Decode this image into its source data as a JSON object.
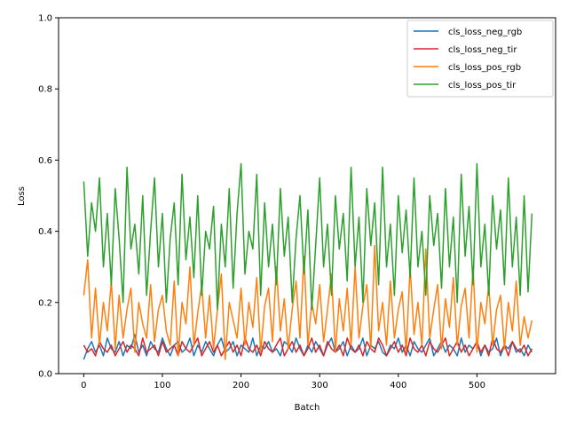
{
  "chart_data": {
    "type": "line",
    "title": "",
    "xlabel": "Batch",
    "ylabel": "Loss",
    "xlim": [
      -32,
      600
    ],
    "ylim": [
      0.0,
      1.0
    ],
    "x_ticks": [
      0,
      100,
      200,
      300,
      400,
      500
    ],
    "x_tick_labels": [
      "0",
      "100",
      "200",
      "300",
      "400",
      "500"
    ],
    "y_ticks": [
      0.0,
      0.2,
      0.4,
      0.6,
      0.8,
      1.0
    ],
    "y_tick_labels": [
      "0.0",
      "0.2",
      "0.4",
      "0.6",
      "0.8",
      "1.0"
    ],
    "grid": false,
    "legend_position": "top-right",
    "x_step": 5,
    "series": [
      {
        "name": "cls_loss_neg_rgb",
        "color": "#1f77b4",
        "values": [
          0.04,
          0.07,
          0.09,
          0.06,
          0.08,
          0.05,
          0.1,
          0.07,
          0.06,
          0.09,
          0.05,
          0.08,
          0.07,
          0.11,
          0.06,
          0.08,
          0.05,
          0.09,
          0.07,
          0.06,
          0.1,
          0.07,
          0.05,
          0.08,
          0.09,
          0.06,
          0.07,
          0.1,
          0.05,
          0.08,
          0.06,
          0.09,
          0.07,
          0.05,
          0.08,
          0.1,
          0.06,
          0.07,
          0.09,
          0.05,
          0.08,
          0.07,
          0.06,
          0.1,
          0.05,
          0.08,
          0.07,
          0.09,
          0.06,
          0.07,
          0.05,
          0.09,
          0.08,
          0.06,
          0.1,
          0.07,
          0.05,
          0.08,
          0.06,
          0.09,
          0.07,
          0.05,
          0.08,
          0.1,
          0.06,
          0.07,
          0.09,
          0.05,
          0.08,
          0.06,
          0.07,
          0.1,
          0.05,
          0.08,
          0.07,
          0.09,
          0.06,
          0.05,
          0.08,
          0.07,
          0.1,
          0.06,
          0.08,
          0.05,
          0.09,
          0.07,
          0.06,
          0.08,
          0.1,
          0.05,
          0.07,
          0.09,
          0.06,
          0.08,
          0.07,
          0.05,
          0.1,
          0.06,
          0.08,
          0.07,
          0.09,
          0.05,
          0.08,
          0.06,
          0.07,
          0.1,
          0.05,
          0.08,
          0.07,
          0.09,
          0.06,
          0.07,
          0.05,
          0.08,
          0.06
        ]
      },
      {
        "name": "cls_loss_neg_tir",
        "color": "#d62728",
        "values": [
          0.08,
          0.06,
          0.07,
          0.05,
          0.09,
          0.07,
          0.06,
          0.08,
          0.05,
          0.07,
          0.09,
          0.06,
          0.08,
          0.07,
          0.05,
          0.1,
          0.06,
          0.07,
          0.08,
          0.05,
          0.09,
          0.06,
          0.07,
          0.08,
          0.05,
          0.09,
          0.07,
          0.06,
          0.08,
          0.1,
          0.05,
          0.07,
          0.09,
          0.06,
          0.08,
          0.05,
          0.07,
          0.09,
          0.06,
          0.08,
          0.05,
          0.1,
          0.07,
          0.06,
          0.08,
          0.05,
          0.09,
          0.07,
          0.06,
          0.08,
          0.1,
          0.05,
          0.07,
          0.09,
          0.06,
          0.08,
          0.05,
          0.07,
          0.1,
          0.06,
          0.08,
          0.05,
          0.09,
          0.07,
          0.06,
          0.08,
          0.05,
          0.1,
          0.07,
          0.06,
          0.08,
          0.05,
          0.09,
          0.07,
          0.06,
          0.1,
          0.08,
          0.05,
          0.07,
          0.09,
          0.06,
          0.08,
          0.05,
          0.1,
          0.07,
          0.06,
          0.08,
          0.05,
          0.09,
          0.07,
          0.06,
          0.08,
          0.1,
          0.05,
          0.07,
          0.09,
          0.06,
          0.08,
          0.05,
          0.07,
          0.09,
          0.06,
          0.08,
          0.05,
          0.1,
          0.07,
          0.06,
          0.08,
          0.05,
          0.09,
          0.07,
          0.06,
          0.08,
          0.05,
          0.07
        ]
      },
      {
        "name": "cls_loss_pos_rgb",
        "color": "#ff7f0e",
        "values": [
          0.22,
          0.32,
          0.1,
          0.24,
          0.08,
          0.2,
          0.12,
          0.26,
          0.07,
          0.22,
          0.1,
          0.18,
          0.24,
          0.06,
          0.2,
          0.14,
          0.1,
          0.25,
          0.09,
          0.18,
          0.22,
          0.12,
          0.08,
          0.26,
          0.05,
          0.2,
          0.14,
          0.3,
          0.08,
          0.17,
          0.25,
          0.1,
          0.22,
          0.07,
          0.18,
          0.28,
          0.04,
          0.2,
          0.15,
          0.1,
          0.24,
          0.08,
          0.2,
          0.13,
          0.27,
          0.06,
          0.19,
          0.24,
          0.09,
          0.3,
          0.12,
          0.21,
          0.07,
          0.18,
          0.26,
          0.1,
          0.33,
          0.08,
          0.2,
          0.14,
          0.25,
          0.09,
          0.18,
          0.28,
          0.06,
          0.21,
          0.12,
          0.24,
          0.08,
          0.3,
          0.1,
          0.19,
          0.25,
          0.07,
          0.36,
          0.12,
          0.2,
          0.08,
          0.26,
          0.1,
          0.18,
          0.23,
          0.06,
          0.3,
          0.11,
          0.2,
          0.08,
          0.35,
          0.1,
          0.18,
          0.25,
          0.07,
          0.21,
          0.13,
          0.27,
          0.08,
          0.19,
          0.24,
          0.1,
          0.3,
          0.06,
          0.2,
          0.14,
          0.25,
          0.08,
          0.18,
          0.22,
          0.07,
          0.2,
          0.12,
          0.26,
          0.08,
          0.16,
          0.1,
          0.15
        ]
      },
      {
        "name": "cls_loss_pos_tir",
        "color": "#2ca02c",
        "values": [
          0.54,
          0.33,
          0.48,
          0.4,
          0.55,
          0.3,
          0.45,
          0.25,
          0.52,
          0.38,
          0.2,
          0.58,
          0.35,
          0.42,
          0.28,
          0.5,
          0.22,
          0.4,
          0.55,
          0.3,
          0.45,
          0.2,
          0.38,
          0.48,
          0.25,
          0.56,
          0.32,
          0.44,
          0.27,
          0.5,
          0.22,
          0.4,
          0.35,
          0.47,
          0.18,
          0.42,
          0.3,
          0.52,
          0.24,
          0.45,
          0.59,
          0.28,
          0.4,
          0.35,
          0.56,
          0.22,
          0.48,
          0.3,
          0.42,
          0.25,
          0.52,
          0.33,
          0.44,
          0.2,
          0.38,
          0.5,
          0.28,
          0.46,
          0.18,
          0.36,
          0.55,
          0.3,
          0.42,
          0.22,
          0.5,
          0.35,
          0.45,
          0.26,
          0.58,
          0.3,
          0.44,
          0.2,
          0.52,
          0.36,
          0.48,
          0.25,
          0.58,
          0.3,
          0.42,
          0.22,
          0.5,
          0.34,
          0.46,
          0.27,
          0.55,
          0.3,
          0.4,
          0.22,
          0.5,
          0.36,
          0.45,
          0.24,
          0.52,
          0.3,
          0.44,
          0.2,
          0.56,
          0.33,
          0.47,
          0.25,
          0.59,
          0.3,
          0.42,
          0.22,
          0.5,
          0.35,
          0.46,
          0.25,
          0.55,
          0.3,
          0.44,
          0.22,
          0.5,
          0.23,
          0.45
        ]
      }
    ]
  }
}
